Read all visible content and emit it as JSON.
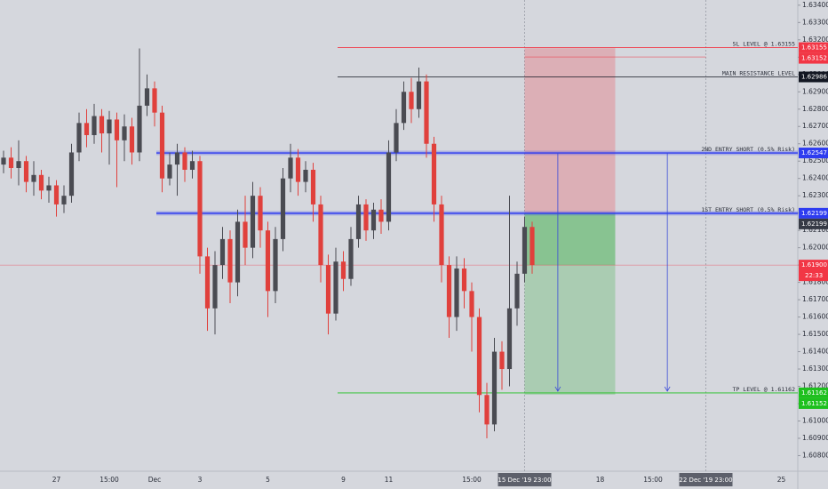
{
  "chart_data": {
    "type": "candlestick",
    "ylim": [
      1.6071,
      1.6343
    ],
    "yticks": [
      {
        "value": 1.608,
        "label": "1.60800"
      },
      {
        "value": 1.609,
        "label": "1.60900"
      },
      {
        "value": 1.61,
        "label": "1.61000"
      },
      {
        "value": 1.611,
        "label": "1.61100"
      },
      {
        "value": 1.612,
        "label": "1.61200"
      },
      {
        "value": 1.613,
        "label": "1.61300"
      },
      {
        "value": 1.614,
        "label": "1.61400"
      },
      {
        "value": 1.615,
        "label": "1.61500"
      },
      {
        "value": 1.616,
        "label": "1.61600"
      },
      {
        "value": 1.617,
        "label": "1.61700"
      },
      {
        "value": 1.618,
        "label": "1.61800"
      },
      {
        "value": 1.619,
        "label": "1.61900"
      },
      {
        "value": 1.62,
        "label": "1.62000"
      },
      {
        "value": 1.621,
        "label": "1.62100"
      },
      {
        "value": 1.622,
        "label": "1.62200"
      },
      {
        "value": 1.623,
        "label": "1.62300"
      },
      {
        "value": 1.624,
        "label": "1.62400"
      },
      {
        "value": 1.625,
        "label": "1.62500"
      },
      {
        "value": 1.626,
        "label": "1.62600"
      },
      {
        "value": 1.627,
        "label": "1.62700"
      },
      {
        "value": 1.628,
        "label": "1.62800"
      },
      {
        "value": 1.629,
        "label": "1.62900"
      },
      {
        "value": 1.63,
        "label": "1.63000"
      },
      {
        "value": 1.631,
        "label": "1.63100"
      },
      {
        "value": 1.632,
        "label": "1.63200"
      },
      {
        "value": 1.633,
        "label": "1.63300"
      },
      {
        "value": 1.634,
        "label": "1.63400"
      }
    ],
    "categories": [
      null,
      null,
      null,
      null,
      null,
      null,
      null,
      "27",
      null,
      null,
      null,
      null,
      null,
      null,
      "15:00",
      null,
      null,
      null,
      null,
      null,
      "Dec",
      null,
      null,
      null,
      null,
      null,
      "3",
      null,
      null,
      null,
      null,
      null,
      null,
      null,
      null,
      "5",
      null,
      null,
      null,
      null,
      null,
      null,
      null,
      null,
      null,
      "9",
      null,
      null,
      null,
      null,
      null,
      "11",
      null,
      null,
      null,
      null,
      null,
      null,
      null,
      null,
      null,
      null,
      "15:00",
      null,
      null,
      null,
      null,
      null,
      null,
      "15 Dec '19 23:00",
      null,
      null,
      null,
      null,
      null,
      null,
      null,
      null,
      null,
      "18",
      null,
      null,
      null,
      null,
      null,
      null,
      "15:00",
      null,
      null,
      null,
      null,
      null,
      null,
      "22 Dec '19 23:00",
      null,
      null,
      null,
      null,
      null,
      null,
      null,
      null,
      null,
      "25",
      null
    ],
    "highlight": [
      "15 Dec '19 23:00",
      "22 Dec '19 23:00"
    ],
    "up_color": "#4a4b52",
    "down_color": "#e0403c",
    "open": [
      1.6248,
      1.6252,
      1.6246,
      1.625,
      1.6238,
      1.6242,
      1.6233,
      1.6236,
      1.6225,
      1.623,
      1.6255,
      1.6272,
      1.6265,
      1.6276,
      1.6266,
      1.6274,
      1.6262,
      1.627,
      1.6255,
      1.6282,
      1.6292,
      1.6278,
      1.624,
      1.6248,
      1.6255,
      1.6245,
      1.625,
      1.6195,
      1.6165,
      1.619,
      1.6205,
      1.618,
      1.6215,
      1.62,
      1.623,
      1.621,
      1.6175,
      1.6205,
      1.624,
      1.6252,
      1.6238,
      1.6245,
      1.6225,
      1.619,
      1.6162,
      1.6192,
      1.6182,
      1.6205,
      1.6225,
      1.621,
      1.6222,
      1.6215,
      1.6255,
      1.6272,
      1.629,
      1.628,
      1.6296,
      1.626,
      1.6225,
      1.619,
      1.616,
      1.6188,
      1.6175,
      1.616,
      1.6115,
      1.6098,
      1.614,
      1.613,
      1.6165,
      1.6185,
      1.6212,
      null,
      null,
      null,
      null,
      null,
      null,
      null,
      null,
      null,
      null,
      null,
      null,
      null,
      null,
      null,
      null,
      null,
      null,
      null,
      null,
      null,
      null,
      null,
      null,
      null,
      null,
      null,
      null,
      null,
      null,
      null,
      null,
      null,
      null
    ],
    "high": [
      1.6256,
      1.6258,
      1.6262,
      1.6253,
      1.625,
      1.6245,
      1.6241,
      1.6239,
      1.6236,
      1.626,
      1.6278,
      1.628,
      1.6283,
      1.628,
      1.6279,
      1.6278,
      1.6277,
      1.6275,
      1.6315,
      1.63,
      1.6296,
      1.6282,
      1.6255,
      1.626,
      1.6258,
      1.6256,
      1.6253,
      1.62,
      1.6198,
      1.6212,
      1.621,
      1.6222,
      1.623,
      1.6238,
      1.6235,
      1.6215,
      1.6212,
      1.6246,
      1.626,
      1.6257,
      1.625,
      1.6249,
      1.623,
      1.6196,
      1.62,
      1.6198,
      1.6212,
      1.623,
      1.6228,
      1.6226,
      1.6228,
      1.6262,
      1.628,
      1.6296,
      1.6298,
      1.6304,
      1.63,
      1.6264,
      1.623,
      1.6195,
      1.6195,
      1.6194,
      1.618,
      1.6165,
      1.6122,
      1.6148,
      1.6146,
      1.623,
      1.6192,
      1.6218,
      1.6215,
      null,
      null,
      null,
      null,
      null,
      null,
      null,
      null,
      null,
      null,
      null,
      null,
      null,
      null,
      null,
      null,
      null,
      null,
      null,
      null,
      null,
      null,
      null,
      null,
      null,
      null,
      null,
      null,
      null,
      null,
      null,
      null,
      null,
      null
    ],
    "low": [
      1.6243,
      1.624,
      1.6236,
      1.6232,
      1.623,
      1.6228,
      1.6226,
      1.6218,
      1.622,
      1.6226,
      1.625,
      1.6258,
      1.626,
      1.6255,
      1.6248,
      1.6235,
      1.625,
      1.6248,
      1.625,
      1.6276,
      1.627,
      1.6232,
      1.6236,
      1.623,
      1.6238,
      1.624,
      1.6185,
      1.6152,
      1.615,
      1.6182,
      1.6168,
      1.6172,
      1.619,
      1.6194,
      1.62,
      1.616,
      1.6168,
      1.6198,
      1.6232,
      1.623,
      1.6232,
      1.6215,
      1.618,
      1.615,
      1.6158,
      1.6175,
      1.6178,
      1.62,
      1.6204,
      1.6205,
      1.6208,
      1.621,
      1.625,
      1.6268,
      1.6272,
      1.6275,
      1.6252,
      1.6215,
      1.618,
      1.6148,
      1.6152,
      1.6165,
      1.614,
      1.6105,
      1.609,
      1.6094,
      1.6118,
      1.612,
      1.6155,
      1.618,
      1.6185,
      null,
      null,
      null,
      null,
      null,
      null,
      null,
      null,
      null,
      null,
      null,
      null,
      null,
      null,
      null,
      null,
      null,
      null,
      null,
      null,
      null,
      null,
      null,
      null,
      null,
      null,
      null,
      null,
      null,
      null,
      null,
      null,
      null,
      null
    ],
    "close": [
      1.6252,
      1.6246,
      1.625,
      1.6238,
      1.6242,
      1.6233,
      1.6236,
      1.6225,
      1.623,
      1.6255,
      1.6272,
      1.6265,
      1.6276,
      1.6266,
      1.6274,
      1.6262,
      1.627,
      1.6255,
      1.6282,
      1.6292,
      1.6278,
      1.624,
      1.6248,
      1.6255,
      1.6245,
      1.625,
      1.6195,
      1.6165,
      1.619,
      1.6205,
      1.618,
      1.6215,
      1.62,
      1.623,
      1.621,
      1.6175,
      1.6205,
      1.624,
      1.6252,
      1.6238,
      1.6245,
      1.6225,
      1.619,
      1.6162,
      1.6192,
      1.6182,
      1.6205,
      1.6225,
      1.621,
      1.6222,
      1.6215,
      1.6255,
      1.6272,
      1.629,
      1.628,
      1.6296,
      1.626,
      1.6225,
      1.619,
      1.616,
      1.6188,
      1.6175,
      1.616,
      1.6115,
      1.6098,
      1.614,
      1.613,
      1.6165,
      1.6185,
      1.6212,
      1.619,
      null,
      null,
      null,
      null,
      null,
      null,
      null,
      null,
      null,
      null,
      null,
      null,
      null,
      null,
      null,
      null,
      null,
      null,
      null,
      null,
      null,
      null,
      null,
      null,
      null,
      null,
      null,
      null,
      null,
      null,
      null,
      null,
      null,
      null
    ],
    "levels": [
      {
        "name": "SL LEVEL @ 1.63155",
        "value": 1.63155,
        "label": "1.63155",
        "color": "#f23645"
      },
      {
        "name": "MAIN RESISTANCE LEVEL",
        "value": 1.62986,
        "label": "1.62986",
        "color": "#131722"
      },
      {
        "name": "2ND ENTRY SHORT (0.5% Risk)",
        "value": 1.62547,
        "label": "1.62547",
        "color": "#2e3cf0"
      },
      {
        "name": "1ST ENTRY SHORT (0.5% Risk)",
        "value": 1.62199,
        "label": "1.62199",
        "color": "#2e3cf0"
      },
      {
        "name": "TP LEVEL @ 1.61162",
        "value": 1.61162,
        "label": "1.61162",
        "color": "#1ec01e"
      }
    ],
    "position": {
      "stop": {
        "value": 1.63152,
        "label": "1.63152",
        "color": "#f23645"
      },
      "entry": {
        "value": 1.62199,
        "label": "1.62199",
        "color": "#363a45"
      },
      "target": {
        "value": 1.61152,
        "label": "1.61152",
        "color": "#1ec01e"
      }
    },
    "current": {
      "value": 1.619,
      "label": "1.61900",
      "countdown": "22:33",
      "color": "#f23645"
    }
  }
}
